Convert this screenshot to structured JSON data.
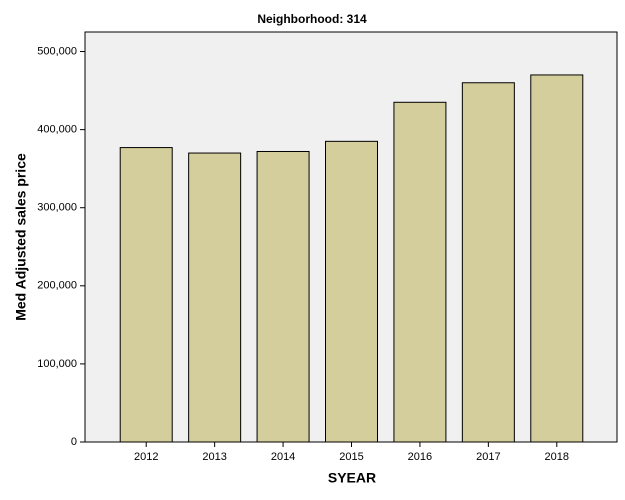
{
  "chart_data": {
    "type": "bar",
    "title": "Neighborhood: 314",
    "x_label": "SYEAR",
    "y_label": "Med Adjusted sales price",
    "categories": [
      "2012",
      "2013",
      "2014",
      "2015",
      "2016",
      "2017",
      "2018"
    ],
    "values": [
      377000,
      370000,
      372000,
      385000,
      435000,
      460000,
      470000
    ],
    "color": "#d3ce9b",
    "ylim": [
      0,
      525000
    ],
    "yticks": [
      0,
      {
        "value": 100000,
        "label": "100,000"
      },
      {
        "value": 200000,
        "label": "200,000"
      },
      {
        "value": 300000,
        "label": "300,000"
      },
      {
        "value": 400000,
        "label": "400,000"
      },
      {
        "value": 500000,
        "label": "500,000"
      }
    ],
    "grid": false
  }
}
